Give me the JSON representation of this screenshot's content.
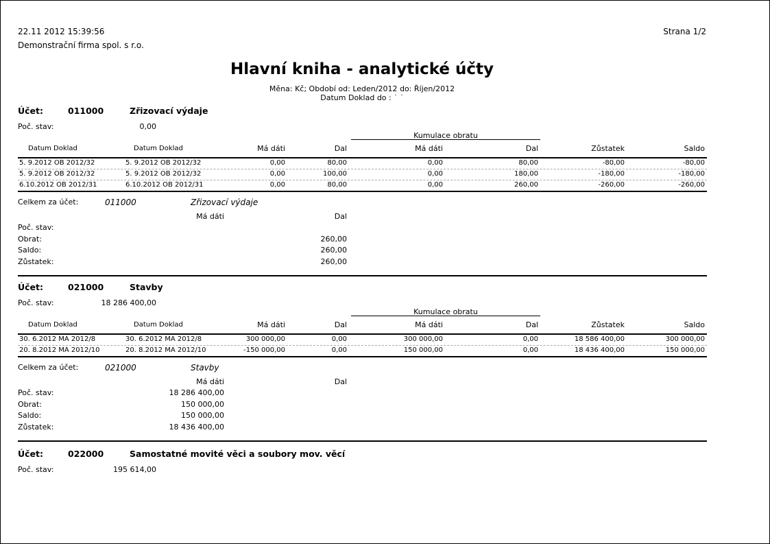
{
  "header": {
    "timestamp": "22.11 2012 15:39:56",
    "company": "Demonstrační firma spol. s r.o.",
    "page": "Strana 1/2",
    "title": "Hlavní kniha - analytické účty",
    "filter_line": "Měna: Kč; Období od: Leden/2012 do: Říjen/2012",
    "filter_line2": "Datum Doklad do : ˙ ˙"
  },
  "labels": {
    "account": "Účet:",
    "opening": "Poč. stav:",
    "cumulation": "Kumulace obratu",
    "col_date1": "Datum Doklad",
    "col_date2": "Datum Doklad",
    "col_debit": "Má dáti",
    "col_credit": "Dal",
    "col_cum_debit": "Má dáti",
    "col_cum_credit": "Dal",
    "col_balance": "Zůstatek",
    "col_saldo": "Saldo",
    "total_for": "Celkem za účet:",
    "sum_debit": "Má dáti",
    "sum_credit": "Dal",
    "sum_opening": "Poč. stav:",
    "sum_turnover": "Obrat:",
    "sum_saldo": "Saldo:",
    "sum_balance": "Zůstatek:"
  },
  "accounts": [
    {
      "number": "011000",
      "name": "Zřizovací výdaje",
      "opening": "0,00",
      "rows": [
        [
          "5. 9.2012 OB 2012/32",
          "5. 9.2012 OB 2012/32",
          "0,00",
          "80,00",
          "0,00",
          "80,00",
          "-80,00",
          "-80,00"
        ],
        [
          "5. 9.2012 OB 2012/32",
          "5. 9.2012 OB 2012/32",
          "0,00",
          "100,00",
          "0,00",
          "180,00",
          "-180,00",
          "-180,00"
        ],
        [
          "6.10.2012 OB 2012/31",
          "6.10.2012 OB 2012/31",
          "0,00",
          "80,00",
          "0,00",
          "260,00",
          "-260,00",
          "-260,00"
        ]
      ],
      "summary": {
        "opening": {
          "debit": "",
          "credit": ""
        },
        "turnover": {
          "debit": "",
          "credit": "260,00"
        },
        "saldo": {
          "debit": "",
          "credit": "260,00"
        },
        "balance": {
          "debit": "",
          "credit": "260,00"
        }
      }
    },
    {
      "number": "021000",
      "name": "Stavby",
      "opening": "18 286 400,00",
      "rows": [
        [
          "30. 6.2012 MA 2012/8",
          "30. 6.2012 MA 2012/8",
          "300 000,00",
          "0,00",
          "300 000,00",
          "0,00",
          "18 586 400,00",
          "300 000,00"
        ],
        [
          "20. 8.2012 MA 2012/10",
          "20. 8.2012 MA 2012/10",
          "-150 000,00",
          "0,00",
          "150 000,00",
          "0,00",
          "18 436 400,00",
          "150 000,00"
        ]
      ],
      "summary": {
        "opening": {
          "debit": "18 286 400,00",
          "credit": ""
        },
        "turnover": {
          "debit": "150 000,00",
          "credit": ""
        },
        "saldo": {
          "debit": "150 000,00",
          "credit": ""
        },
        "balance": {
          "debit": "18 436 400,00",
          "credit": ""
        }
      }
    },
    {
      "number": "022000",
      "name": "Samostatné movité věci a soubory mov. věcí",
      "opening": "195 614,00"
    }
  ]
}
